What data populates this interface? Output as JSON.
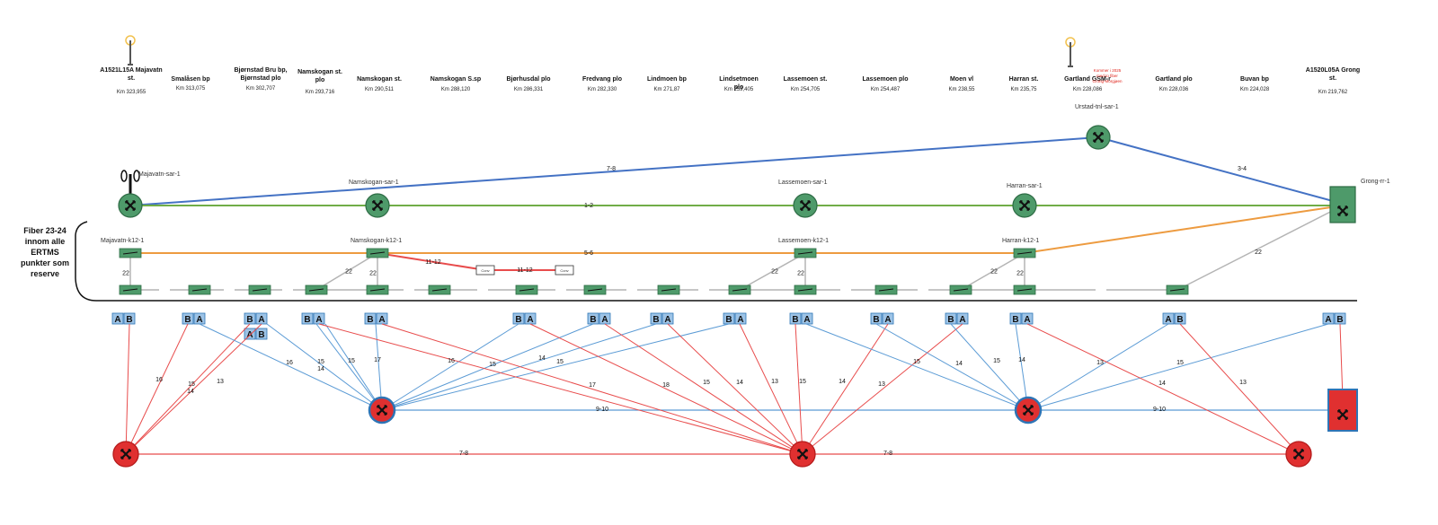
{
  "stations": [
    {
      "name": "A1521L15A Majavatn st.",
      "km": "Km 323,955"
    },
    {
      "name": "Smalåsen bp",
      "km": "Km 313,075"
    },
    {
      "name": "Bjørnstad Bru bp, Bjørnstad plo",
      "km": "Km 302,707"
    },
    {
      "name": "Namskogan st. plo",
      "km": "Km 293,716"
    },
    {
      "name": "Namskogan st.",
      "km": "Km 290,511"
    },
    {
      "name": "Namskogan S.sp",
      "km": "Km 288,120"
    },
    {
      "name": "Bjørhusdal plo",
      "km": "Km 286,331"
    },
    {
      "name": "Fredvang plo",
      "km": "Km 282,330"
    },
    {
      "name": "Lindmoen bp",
      "km": "Km 271,87"
    },
    {
      "name": "Lindsetmoen plo",
      "km": "Km 259,405"
    },
    {
      "name": "Lassemoen st.",
      "km": "Km 254,705"
    },
    {
      "name": "Lassemoen plo",
      "km": "Km 254,487"
    },
    {
      "name": "Moen vl",
      "km": "Km 238,55"
    },
    {
      "name": "Harran st.",
      "km": "Km 235,75"
    },
    {
      "name": "Gartland GSM-r",
      "km": "Km 228,086"
    },
    {
      "name": "Gartland plo",
      "km": "Km 228,036"
    },
    {
      "name": "Buvan bp",
      "km": "Km 224,028"
    },
    {
      "name": "A1520L05A Grong st.",
      "km": "Km 219,762"
    }
  ],
  "gsm_note": "Kommer i 2025 med to fiber Grong-Morgjøen",
  "fiber_note": "Fiber 23-24 innom alle ERTMS punkter som reserve",
  "sar_nodes": [
    "Majavatn-sar-1",
    "Namskogan-sar-1",
    "Lassemoen-sar-1",
    "Harran-sar-1",
    "Urstad-tnl-sar-1",
    "Grong-rr-1"
  ],
  "k12_nodes": [
    "Majavatn-k12-1",
    "Namskogan-k12-1",
    "Lassemoen-k12-1",
    "Harran-k12-1"
  ],
  "small_box_label": "Conv",
  "edge_labels": {
    "blue_top": "7-8",
    "blue_right": "3-4",
    "green": "1-2",
    "orange": "5-6",
    "grey": "22",
    "red_k12_a": "11-12",
    "red_k12_b": "11-12",
    "blue_lower": "9-10",
    "red_lower": "7-8"
  },
  "ab_pairs": [
    [
      "A",
      "B"
    ],
    [
      "B",
      "A"
    ],
    [
      "B",
      "A"
    ],
    [
      "B",
      "A"
    ],
    [
      "B",
      "A"
    ],
    [
      "B",
      "A"
    ],
    [
      "B",
      "A"
    ],
    [
      "B",
      "A"
    ],
    [
      "B",
      "A"
    ],
    [
      "B",
      "A"
    ],
    [
      "B",
      "A"
    ],
    [
      "B",
      "A"
    ],
    [
      "B",
      "A"
    ],
    [
      "A",
      "B"
    ],
    [
      "A",
      "B"
    ],
    [
      "A",
      "B"
    ],
    [
      "B",
      "A"
    ]
  ],
  "ab_colors": {
    "box_fill": "#9dc3e6",
    "box_stroke": "#2e75b6"
  },
  "spoke_labels": [
    "16",
    "15",
    "14",
    "13",
    "16",
    "15",
    "14",
    "15",
    "17",
    "16",
    "15",
    "14",
    "15",
    "17",
    "18",
    "15",
    "14",
    "13",
    "15",
    "14",
    "13",
    "15",
    "14",
    "15",
    "14",
    "13",
    "15",
    "14",
    "13"
  ],
  "colors": {
    "blue": "#4472c4",
    "green": "#70ad47",
    "orange": "#ed9b40",
    "grey": "#b4b4b4",
    "red": "#e84c4c",
    "lightblue": "#5b9bd5",
    "node_green": "#4e9a6a",
    "node_red": "#e03030"
  }
}
